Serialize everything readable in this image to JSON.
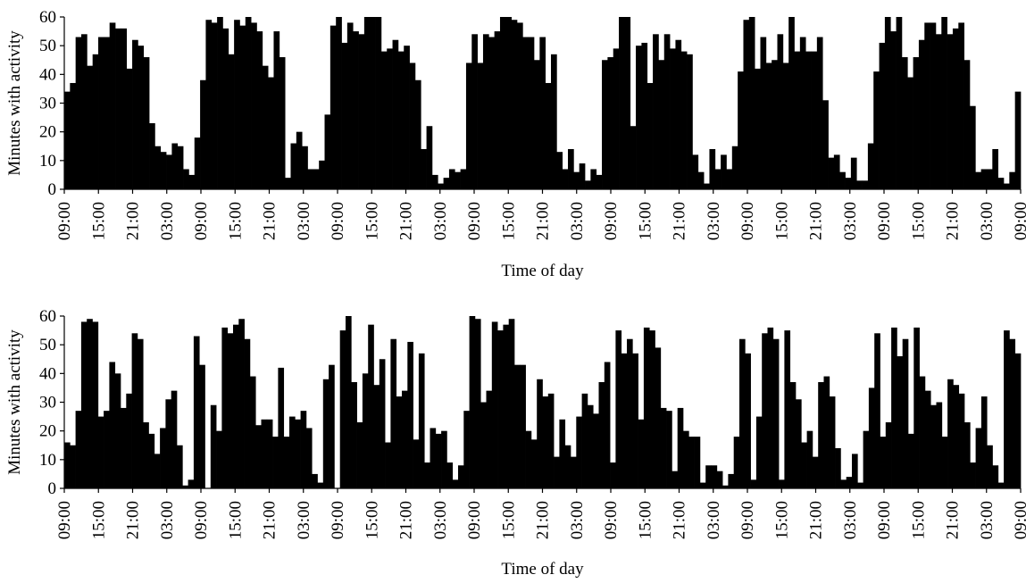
{
  "chart_data": [
    {
      "type": "bar",
      "panel": "top",
      "xlabel": "Time of day",
      "ylabel": "Minutes with activity",
      "ylim": [
        0,
        60
      ],
      "yticks": [
        "0",
        "10",
        "20",
        "30",
        "40",
        "50",
        "60"
      ],
      "xticks": [
        "09:00",
        "15:00",
        "21:00",
        "03:00",
        "09:00",
        "15:00",
        "21:00",
        "03:00",
        "09:00",
        "15:00",
        "21:00",
        "03:00",
        "09:00",
        "15:00",
        "21:00",
        "03:00",
        "09:00",
        "15:00",
        "21:00",
        "03:00",
        "09:00",
        "15:00",
        "21:00",
        "03:00",
        "09:00",
        "15:00",
        "21:00",
        "03:00",
        "09:00"
      ],
      "bar_width_hours": 1,
      "grid": false,
      "legend": "none",
      "color": "#000000",
      "values": [
        34,
        37,
        53,
        54,
        43,
        47,
        53,
        53,
        58,
        56,
        56,
        42,
        52,
        50,
        46,
        23,
        15,
        13,
        12,
        16,
        15,
        7,
        5,
        18,
        38,
        59,
        58,
        60,
        56,
        47,
        59,
        57,
        60,
        58,
        55,
        43,
        39,
        55,
        46,
        4,
        16,
        20,
        15,
        7,
        7,
        10,
        26,
        57,
        60,
        51,
        58,
        55,
        54,
        60,
        60,
        60,
        48,
        49,
        52,
        48,
        50,
        44,
        38,
        14,
        22,
        5,
        2,
        4,
        7,
        6,
        7,
        44,
        54,
        44,
        54,
        53,
        55,
        60,
        60,
        59,
        58,
        53,
        53,
        45,
        53,
        37,
        47,
        13,
        7,
        14,
        6,
        9,
        3,
        7,
        5,
        45,
        46,
        49,
        60,
        60,
        22,
        50,
        51,
        37,
        54,
        45,
        54,
        49,
        52,
        48,
        47,
        12,
        6,
        2,
        14,
        7,
        12,
        7,
        15,
        41,
        59,
        60,
        42,
        53,
        44,
        45,
        54,
        44,
        60,
        48,
        53,
        48,
        48,
        53,
        31,
        11,
        12,
        6,
        4,
        11,
        3,
        3,
        16,
        41,
        51,
        60,
        55,
        60,
        46,
        39,
        46,
        52,
        58,
        58,
        54,
        60,
        54,
        56,
        58,
        45,
        29,
        6,
        7,
        7,
        14,
        4,
        2,
        6,
        34
      ]
    },
    {
      "type": "bar",
      "panel": "bottom",
      "xlabel": "Time of day",
      "ylabel": "Minutes with activity",
      "ylim": [
        0,
        60
      ],
      "yticks": [
        "0",
        "10",
        "20",
        "30",
        "40",
        "50",
        "60"
      ],
      "xticks": [
        "09:00",
        "15:00",
        "21:00",
        "03:00",
        "09:00",
        "15:00",
        "21:00",
        "03:00",
        "09:00",
        "15:00",
        "21:00",
        "03:00",
        "09:00",
        "15:00",
        "21:00",
        "03:00",
        "09:00",
        "15:00",
        "21:00",
        "03:00",
        "09:00",
        "15:00",
        "21:00",
        "03:00",
        "09:00",
        "15:00",
        "21:00",
        "03:00",
        "09:00"
      ],
      "bar_width_hours": 1,
      "grid": false,
      "legend": "none",
      "color": "#000000",
      "values": [
        16,
        15,
        27,
        58,
        59,
        58,
        25,
        27,
        44,
        40,
        28,
        33,
        54,
        52,
        23,
        19,
        12,
        21,
        31,
        34,
        15,
        1,
        3,
        53,
        43,
        0,
        29,
        20,
        56,
        54,
        57,
        59,
        52,
        39,
        22,
        24,
        24,
        18,
        42,
        18,
        25,
        24,
        27,
        21,
        5,
        2,
        38,
        43,
        0,
        55,
        60,
        37,
        23,
        40,
        57,
        36,
        45,
        16,
        52,
        32,
        34,
        51,
        17,
        47,
        9,
        21,
        19,
        20,
        9,
        3,
        8,
        27,
        60,
        59,
        30,
        34,
        58,
        55,
        57,
        59,
        43,
        43,
        20,
        17,
        38,
        32,
        33,
        11,
        24,
        15,
        11,
        25,
        33,
        29,
        26,
        37,
        44,
        9,
        55,
        47,
        52,
        47,
        24,
        56,
        55,
        49,
        28,
        27,
        6,
        28,
        20,
        18,
        18,
        2,
        8,
        8,
        6,
        1,
        5,
        18,
        52,
        47,
        3,
        25,
        54,
        56,
        52,
        3,
        55,
        37,
        31,
        16,
        20,
        11,
        37,
        39,
        32,
        14,
        3,
        4,
        12,
        2,
        20,
        35,
        54,
        18,
        23,
        56,
        46,
        52,
        19,
        56,
        39,
        34,
        29,
        30,
        18,
        38,
        36,
        33,
        23,
        9,
        21,
        32,
        15,
        8,
        2,
        55,
        52,
        47
      ]
    }
  ]
}
